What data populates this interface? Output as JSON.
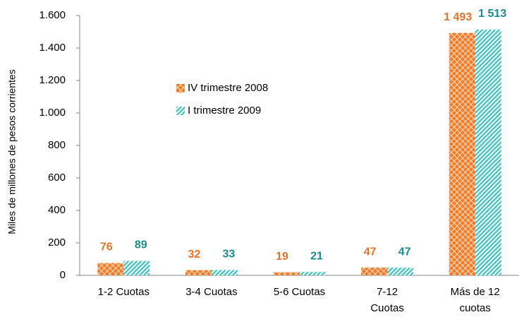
{
  "chart_data": {
    "type": "bar",
    "y_label": "Miles de millones de pesos corrientes",
    "categories": [
      [
        "1-2 Cuotas"
      ],
      [
        "3-4 Cuotas"
      ],
      [
        "5-6 Cuotas"
      ],
      [
        "7-12",
        "Cuotas"
      ],
      [
        "Más de 12",
        "cuotas"
      ]
    ],
    "series": [
      {
        "name": "IV trimestre 2008",
        "color": "#f07a28",
        "label_color": "#e8722a",
        "values": [
          76,
          32,
          19,
          47,
          1493
        ],
        "value_labels": [
          "76",
          "32",
          "19",
          "47",
          "1 493"
        ]
      },
      {
        "name": "I trimestre 2009",
        "color": "#4cc4c4",
        "label_color": "#1a8c8c",
        "values": [
          89,
          33,
          21,
          47,
          1513
        ],
        "value_labels": [
          "89",
          "33",
          "21",
          "47",
          "1 513"
        ]
      }
    ],
    "ylim": [
      0,
      1600
    ],
    "yticks": [
      0,
      200,
      400,
      600,
      800,
      {
        "value": 1000,
        "label": "1.000"
      },
      {
        "value": 1200,
        "label": "1.200"
      },
      {
        "value": 1400,
        "label": "1.400"
      },
      {
        "value": 1600,
        "label": "1.600"
      }
    ],
    "legend": "upper-left"
  }
}
